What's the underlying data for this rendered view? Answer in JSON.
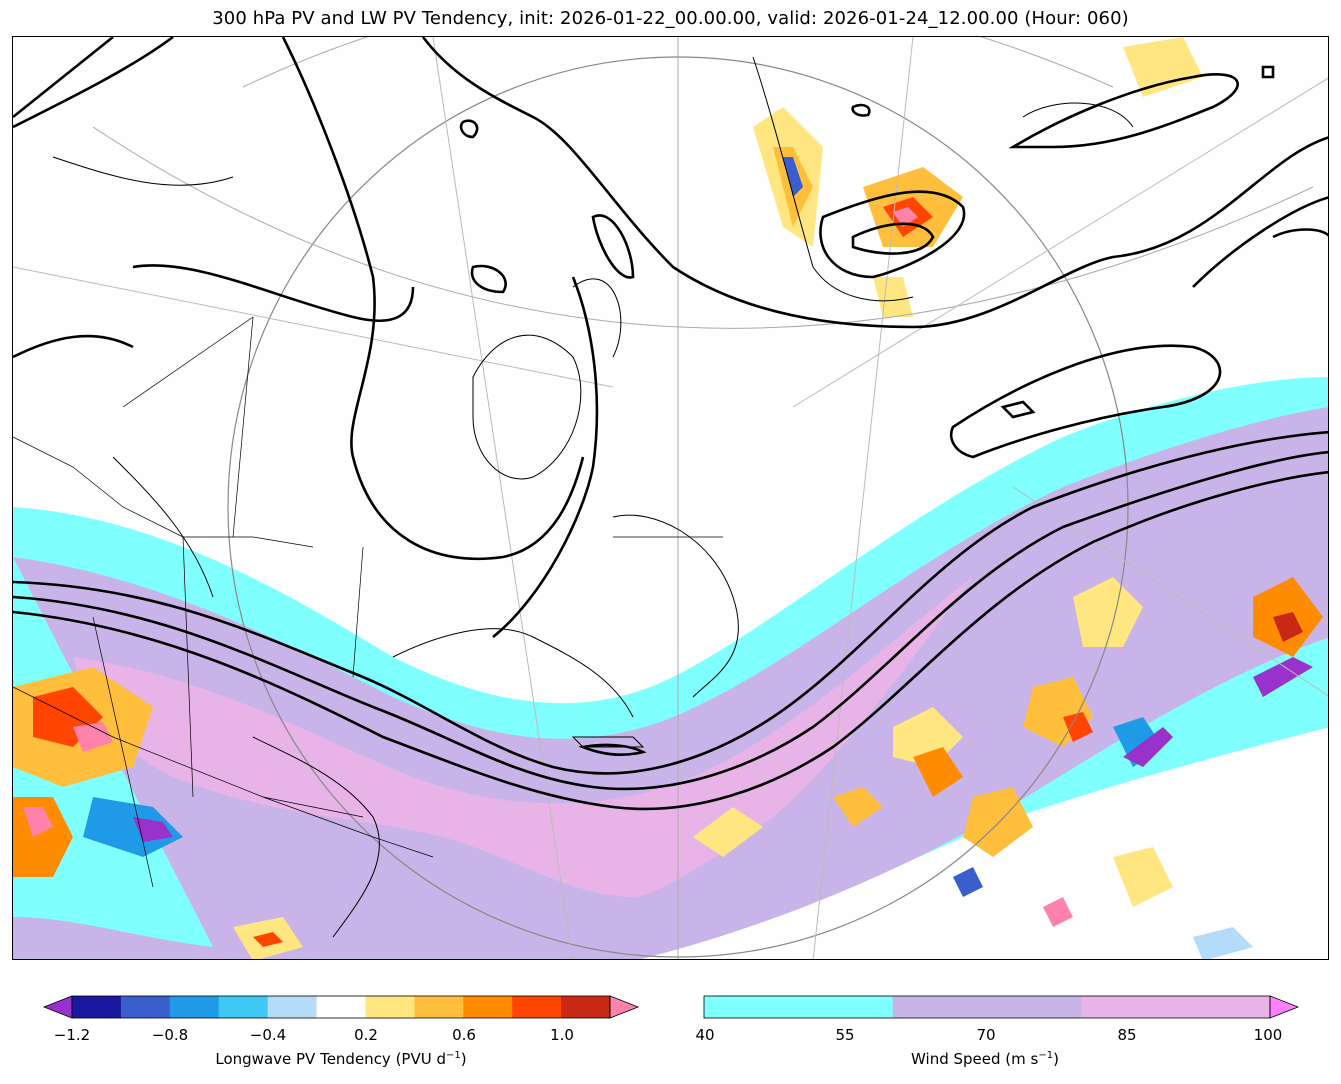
{
  "title": "300 hPa PV and LW PV Tendency, init: 2026-01-22_00.00.00, valid: 2026-01-24_12.00.00 (Hour: 060)",
  "colorbars": {
    "pv_tendency": {
      "label_main": "Longwave PV Tendency (PVU d",
      "label_exp": "−1",
      "label_close": ")",
      "ticks": [
        "−1.2",
        "−0.8",
        "−0.4",
        "0.2",
        "0.6",
        "1.0"
      ],
      "colors": [
        "#9932cc",
        "#1a1aa0",
        "#3a5fcd",
        "#1e9ae6",
        "#40c8f5",
        "#b4dcf8",
        "#ffffff",
        "#ffe680",
        "#ffbe3c",
        "#ff8c00",
        "#ff4500",
        "#c82814",
        "#ff82ab"
      ]
    },
    "wind_speed": {
      "label_main": "Wind Speed (m s",
      "label_exp": "−1",
      "label_close": ")",
      "ticks": [
        "40",
        "55",
        "70",
        "85",
        "100"
      ],
      "colors": [
        "#80ffff",
        "#c8b4e8",
        "#e8b4e8",
        "#ff80ff"
      ]
    }
  },
  "map": {
    "fill_colors": {
      "jet_40_55": "#80ffff",
      "jet_55_70": "#c8b4e8",
      "jet_70_85": "#e8b4e8",
      "background": "#fefefe"
    }
  }
}
